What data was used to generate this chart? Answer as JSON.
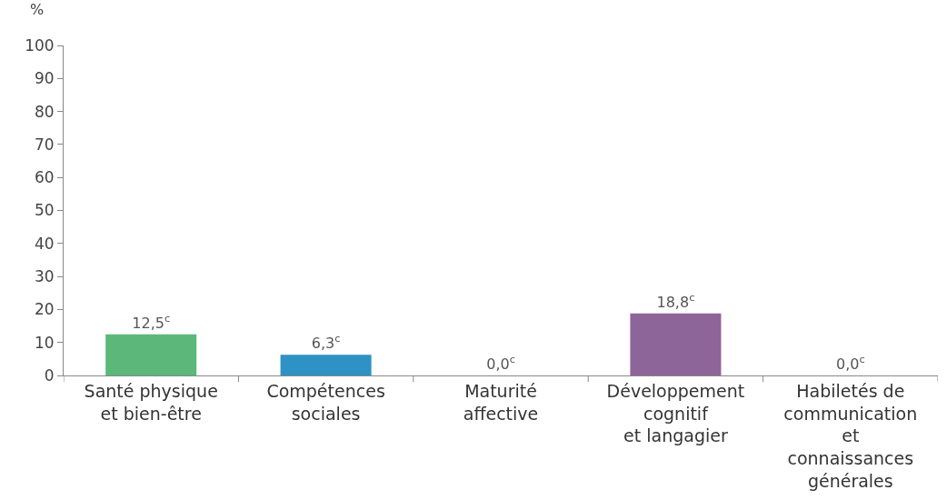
{
  "chart_data": {
    "type": "bar",
    "ylabel": "%",
    "categories": [
      "Santé physique\net bien-être",
      "Compétences\nsociales",
      "Maturité\naffective",
      "Développement\ncognitif\net langagier",
      "Habiletés de\ncommunication\net\nconnaissances\ngénérales"
    ],
    "values": [
      12.5,
      6.3,
      0.0,
      18.8,
      0.0
    ],
    "colors": [
      "#5cb87a",
      "#2e92c4",
      "#999999",
      "#8e6598",
      "#999999"
    ],
    "value_labels": [
      "12,5$^{c}$",
      "6,3$^{c}$",
      "0,0$^{c}$",
      "18,8$^{c}$",
      "0,0$^{c}$"
    ],
    "ylim": [
      0,
      100
    ],
    "yticks": [
      0,
      10,
      20,
      30,
      40,
      50,
      60,
      70,
      80,
      90,
      100
    ],
    "grid": false,
    "legend": false
  }
}
